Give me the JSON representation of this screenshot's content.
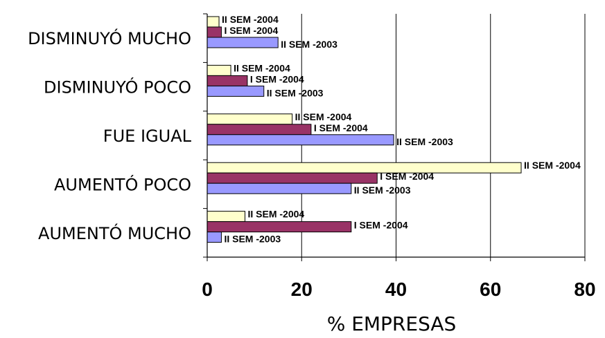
{
  "chart_data": {
    "type": "bar",
    "orientation": "horizontal",
    "categories": [
      "DISMINUYÓ MUCHO",
      "DISMINUYÓ POCO",
      "FUE IGUAL",
      "AUMENTÓ POCO",
      "AUMENTÓ MUCHO"
    ],
    "series": [
      {
        "name": "II SEM -2004",
        "color": "#FFFFCC",
        "values": [
          2.5,
          5,
          18,
          66.5,
          8
        ],
        "labels": [
          "II SEM -2004",
          "II SEM -2004",
          "II SEM -2004",
          "II SEM -2004",
          "II SEM -2004"
        ]
      },
      {
        "name": "I SEM -2004",
        "color": "#993366",
        "values": [
          3,
          8.5,
          22,
          36,
          30.5
        ],
        "labels": [
          "I SEM -2004",
          "I SEM -2004",
          "I SEM -2004",
          "I SEM -2004",
          "I SEM -2004"
        ]
      },
      {
        "name": "II SEM -2003",
        "color": "#9999FF",
        "values": [
          15,
          12,
          39.5,
          30.5,
          3
        ],
        "labels": [
          "II SEM -2003",
          "II SEM -2003",
          "II SEM -2003",
          "II SEM -2003",
          "II SEM -2003"
        ]
      }
    ],
    "title": "",
    "xlabel": "% EMPRESAS",
    "ylabel": "",
    "xlim": [
      0,
      80
    ],
    "xticks": [
      0,
      20,
      40,
      60,
      80
    ],
    "xtick_labels": [
      "0",
      "20",
      "40",
      "60",
      "80"
    ],
    "grid": "vertical",
    "legend": "none"
  }
}
